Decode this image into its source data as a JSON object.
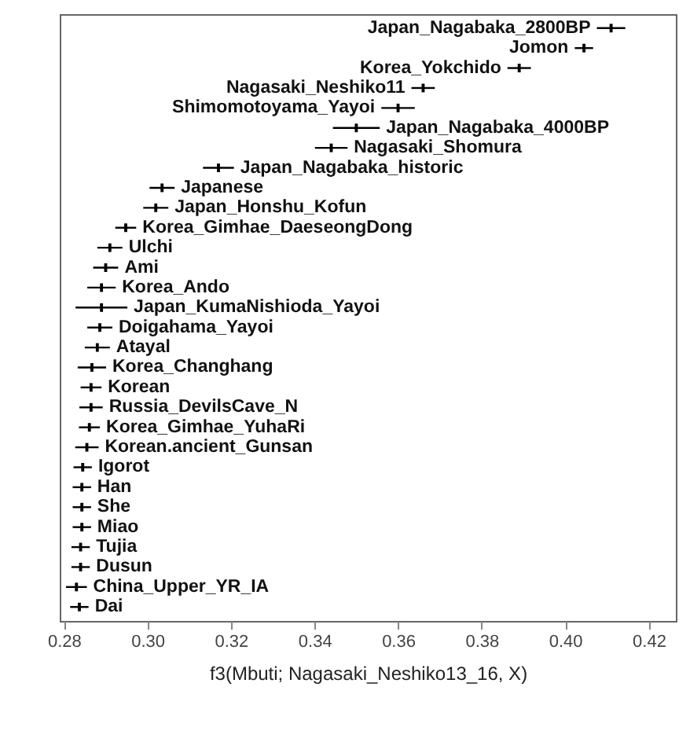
{
  "chart_data": {
    "type": "scatter",
    "orientation": "horizontal",
    "xlabel": "f3(Mbuti; Nagasaki_Neshiko13_16, X)",
    "categories": [
      "Japan_Nagabaka_2800BP",
      "Jomon",
      "Korea_Yokchido",
      "Nagasaki_Neshiko11",
      "Shimomotoyama_Yayoi",
      "Japan_Nagabaka_4000BP",
      "Nagasaki_Shomura",
      "Japan_Nagabaka_historic",
      "Japanese",
      "Japan_Honshu_Kofun",
      "Korea_Gimhae_DaeseongDong",
      "Ulchi",
      "Ami",
      "Korea_Ando",
      "Japan_KumaNishioda_Yayoi",
      "Doigahama_Yayoi",
      "Atayal",
      "Korea_Changhang",
      "Korean",
      "Russia_DevilsCave_N",
      "Korea_Gimhae_YuhaRi",
      "Korean.ancient_Gunsan",
      "Igorot",
      "Han",
      "She",
      "Miao",
      "Tujia",
      "Dusun",
      "China_Upper_YR_IA",
      "Dai"
    ],
    "values": [
      0.411,
      0.4045,
      0.389,
      0.366,
      0.36,
      0.35,
      0.344,
      0.317,
      0.3035,
      0.302,
      0.2948,
      0.291,
      0.29,
      0.289,
      0.289,
      0.2886,
      0.288,
      0.2867,
      0.2865,
      0.2865,
      0.2861,
      0.2855,
      0.2845,
      0.2843,
      0.2843,
      0.2843,
      0.284,
      0.284,
      0.283,
      0.2837
    ],
    "errors": [
      0.0034,
      0.0022,
      0.0028,
      0.0028,
      0.004,
      0.0056,
      0.0039,
      0.0037,
      0.003,
      0.003,
      0.0025,
      0.003,
      0.003,
      0.0034,
      0.0062,
      0.003,
      0.003,
      0.0034,
      0.0025,
      0.0028,
      0.0025,
      0.0028,
      0.0022,
      0.0022,
      0.0022,
      0.0022,
      0.0022,
      0.0022,
      0.0025,
      0.0022
    ],
    "color": "#000000",
    "marker": "square",
    "xlim": [
      0.279,
      0.4265
    ],
    "xticks": [
      0.28,
      {
        "value": 0.3,
        "label": "0.30"
      },
      0.32,
      0.34,
      0.36,
      0.38,
      {
        "value": 0.4,
        "label": "0.40"
      },
      0.42
    ],
    "tick_labels": "x",
    "grid": false
  }
}
